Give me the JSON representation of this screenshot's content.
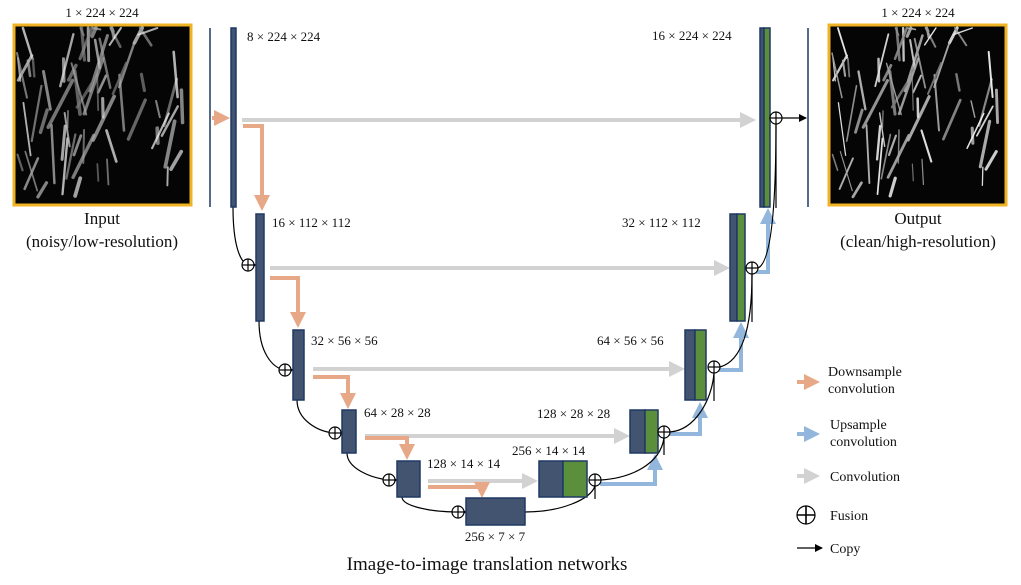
{
  "input": {
    "dims": "1 × 224 × 224",
    "title": "Input",
    "subtitle": "(noisy/low-resolution)"
  },
  "output": {
    "dims": "1 × 224 × 224",
    "title": "Output",
    "subtitle": "(clean/high-resolution)"
  },
  "encoder": [
    "8 × 224 × 224",
    "16 × 112 × 112",
    "32 × 56 × 56",
    "64 × 28 × 28",
    "128 × 14 × 14",
    "256 × 7 × 7"
  ],
  "decoder": [
    "256 × 14 × 14",
    "128 × 28 × 28",
    "64 × 56 × 56",
    "32 × 112 × 112",
    "16 × 224 × 224"
  ],
  "legend": [
    {
      "label": [
        "Downsample",
        "convolution"
      ]
    },
    {
      "label": [
        "Upsample",
        "convolution"
      ]
    },
    {
      "label": [
        "Convolution"
      ]
    },
    {
      "label": [
        "Fusion"
      ]
    },
    {
      "label": [
        "Copy"
      ]
    }
  ],
  "caption": "Image-to-image translation networks"
}
